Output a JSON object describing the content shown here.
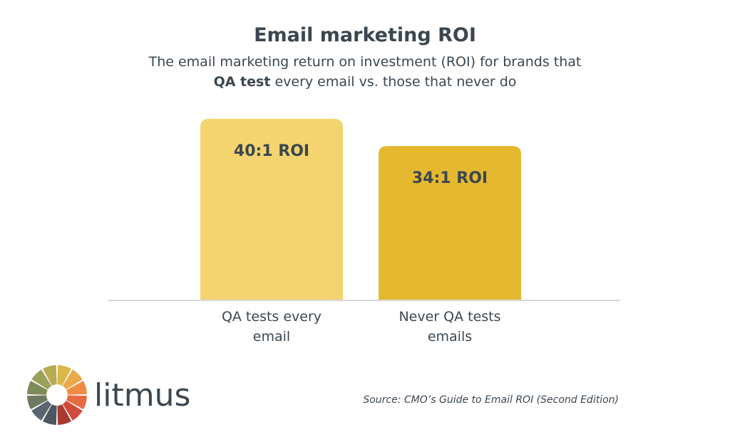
{
  "chart_data": {
    "type": "bar",
    "title": "Email marketing ROI",
    "subtitle": [
      "The email marketing return on investment (ROI) for brands that",
      "QA test",
      "every email vs. those that never do"
    ],
    "categories": [
      "QA tests every email",
      "Never QA tests emails"
    ],
    "values": [
      40,
      34
    ],
    "value_labels": [
      "40:1 ROI",
      "34:1 ROI"
    ],
    "colors": [
      "#f3d46e",
      "#e5b92f"
    ],
    "source": "Source: CMO’s Guide to Email ROI (Second Edition)",
    "brand": "litmus"
  }
}
